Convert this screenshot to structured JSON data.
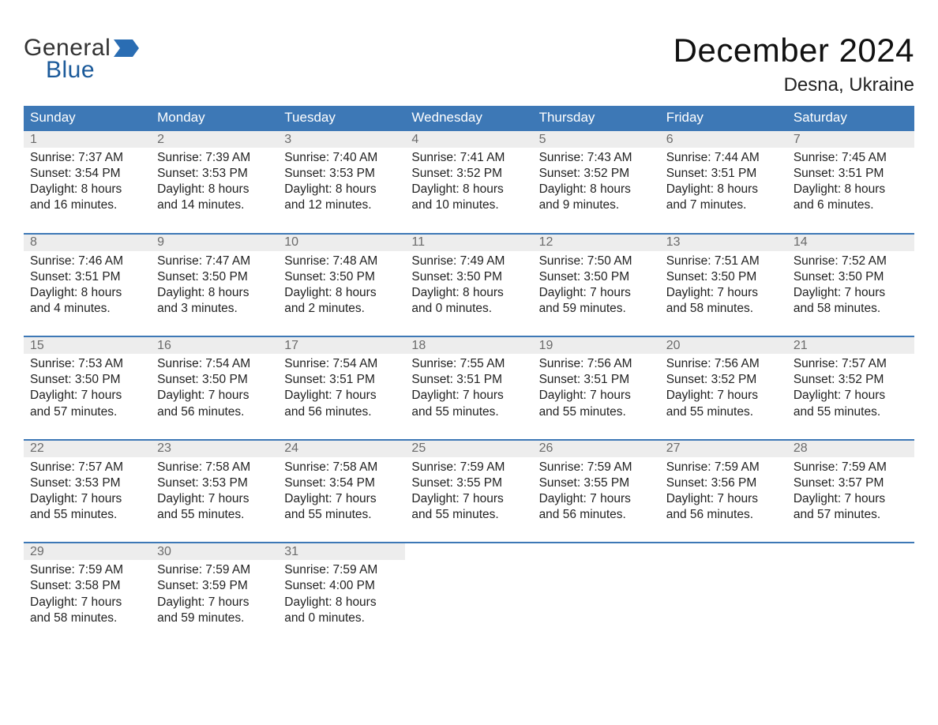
{
  "brand": {
    "wordA": "General",
    "wordB": "Blue",
    "textColorA": "#333333",
    "textColorB": "#1b5a9a",
    "flagColor": "#2a6db3"
  },
  "title": "December 2024",
  "location": "Desna, Ukraine",
  "colors": {
    "headerBg": "#3d78b6",
    "headerText": "#ffffff",
    "weekBorder": "#3d78b6",
    "dayStripBg": "#ededed",
    "dayNumColor": "#6b6b6b",
    "bodyText": "#222222",
    "pageBg": "#ffffff"
  },
  "typography": {
    "titleFontSize": 42,
    "locationFontSize": 24,
    "dayHeaderFontSize": 17,
    "cellFontSize": 15.5
  },
  "dayHeaders": [
    "Sunday",
    "Monday",
    "Tuesday",
    "Wednesday",
    "Thursday",
    "Friday",
    "Saturday"
  ],
  "weeks": [
    [
      {
        "n": "1",
        "sunrise": "Sunrise: 7:37 AM",
        "sunset": "Sunset: 3:54 PM",
        "d1": "Daylight: 8 hours",
        "d2": "and 16 minutes."
      },
      {
        "n": "2",
        "sunrise": "Sunrise: 7:39 AM",
        "sunset": "Sunset: 3:53 PM",
        "d1": "Daylight: 8 hours",
        "d2": "and 14 minutes."
      },
      {
        "n": "3",
        "sunrise": "Sunrise: 7:40 AM",
        "sunset": "Sunset: 3:53 PM",
        "d1": "Daylight: 8 hours",
        "d2": "and 12 minutes."
      },
      {
        "n": "4",
        "sunrise": "Sunrise: 7:41 AM",
        "sunset": "Sunset: 3:52 PM",
        "d1": "Daylight: 8 hours",
        "d2": "and 10 minutes."
      },
      {
        "n": "5",
        "sunrise": "Sunrise: 7:43 AM",
        "sunset": "Sunset: 3:52 PM",
        "d1": "Daylight: 8 hours",
        "d2": "and 9 minutes."
      },
      {
        "n": "6",
        "sunrise": "Sunrise: 7:44 AM",
        "sunset": "Sunset: 3:51 PM",
        "d1": "Daylight: 8 hours",
        "d2": "and 7 minutes."
      },
      {
        "n": "7",
        "sunrise": "Sunrise: 7:45 AM",
        "sunset": "Sunset: 3:51 PM",
        "d1": "Daylight: 8 hours",
        "d2": "and 6 minutes."
      }
    ],
    [
      {
        "n": "8",
        "sunrise": "Sunrise: 7:46 AM",
        "sunset": "Sunset: 3:51 PM",
        "d1": "Daylight: 8 hours",
        "d2": "and 4 minutes."
      },
      {
        "n": "9",
        "sunrise": "Sunrise: 7:47 AM",
        "sunset": "Sunset: 3:50 PM",
        "d1": "Daylight: 8 hours",
        "d2": "and 3 minutes."
      },
      {
        "n": "10",
        "sunrise": "Sunrise: 7:48 AM",
        "sunset": "Sunset: 3:50 PM",
        "d1": "Daylight: 8 hours",
        "d2": "and 2 minutes."
      },
      {
        "n": "11",
        "sunrise": "Sunrise: 7:49 AM",
        "sunset": "Sunset: 3:50 PM",
        "d1": "Daylight: 8 hours",
        "d2": "and 0 minutes."
      },
      {
        "n": "12",
        "sunrise": "Sunrise: 7:50 AM",
        "sunset": "Sunset: 3:50 PM",
        "d1": "Daylight: 7 hours",
        "d2": "and 59 minutes."
      },
      {
        "n": "13",
        "sunrise": "Sunrise: 7:51 AM",
        "sunset": "Sunset: 3:50 PM",
        "d1": "Daylight: 7 hours",
        "d2": "and 58 minutes."
      },
      {
        "n": "14",
        "sunrise": "Sunrise: 7:52 AM",
        "sunset": "Sunset: 3:50 PM",
        "d1": "Daylight: 7 hours",
        "d2": "and 58 minutes."
      }
    ],
    [
      {
        "n": "15",
        "sunrise": "Sunrise: 7:53 AM",
        "sunset": "Sunset: 3:50 PM",
        "d1": "Daylight: 7 hours",
        "d2": "and 57 minutes."
      },
      {
        "n": "16",
        "sunrise": "Sunrise: 7:54 AM",
        "sunset": "Sunset: 3:50 PM",
        "d1": "Daylight: 7 hours",
        "d2": "and 56 minutes."
      },
      {
        "n": "17",
        "sunrise": "Sunrise: 7:54 AM",
        "sunset": "Sunset: 3:51 PM",
        "d1": "Daylight: 7 hours",
        "d2": "and 56 minutes."
      },
      {
        "n": "18",
        "sunrise": "Sunrise: 7:55 AM",
        "sunset": "Sunset: 3:51 PM",
        "d1": "Daylight: 7 hours",
        "d2": "and 55 minutes."
      },
      {
        "n": "19",
        "sunrise": "Sunrise: 7:56 AM",
        "sunset": "Sunset: 3:51 PM",
        "d1": "Daylight: 7 hours",
        "d2": "and 55 minutes."
      },
      {
        "n": "20",
        "sunrise": "Sunrise: 7:56 AM",
        "sunset": "Sunset: 3:52 PM",
        "d1": "Daylight: 7 hours",
        "d2": "and 55 minutes."
      },
      {
        "n": "21",
        "sunrise": "Sunrise: 7:57 AM",
        "sunset": "Sunset: 3:52 PM",
        "d1": "Daylight: 7 hours",
        "d2": "and 55 minutes."
      }
    ],
    [
      {
        "n": "22",
        "sunrise": "Sunrise: 7:57 AM",
        "sunset": "Sunset: 3:53 PM",
        "d1": "Daylight: 7 hours",
        "d2": "and 55 minutes."
      },
      {
        "n": "23",
        "sunrise": "Sunrise: 7:58 AM",
        "sunset": "Sunset: 3:53 PM",
        "d1": "Daylight: 7 hours",
        "d2": "and 55 minutes."
      },
      {
        "n": "24",
        "sunrise": "Sunrise: 7:58 AM",
        "sunset": "Sunset: 3:54 PM",
        "d1": "Daylight: 7 hours",
        "d2": "and 55 minutes."
      },
      {
        "n": "25",
        "sunrise": "Sunrise: 7:59 AM",
        "sunset": "Sunset: 3:55 PM",
        "d1": "Daylight: 7 hours",
        "d2": "and 55 minutes."
      },
      {
        "n": "26",
        "sunrise": "Sunrise: 7:59 AM",
        "sunset": "Sunset: 3:55 PM",
        "d1": "Daylight: 7 hours",
        "d2": "and 56 minutes."
      },
      {
        "n": "27",
        "sunrise": "Sunrise: 7:59 AM",
        "sunset": "Sunset: 3:56 PM",
        "d1": "Daylight: 7 hours",
        "d2": "and 56 minutes."
      },
      {
        "n": "28",
        "sunrise": "Sunrise: 7:59 AM",
        "sunset": "Sunset: 3:57 PM",
        "d1": "Daylight: 7 hours",
        "d2": "and 57 minutes."
      }
    ],
    [
      {
        "n": "29",
        "sunrise": "Sunrise: 7:59 AM",
        "sunset": "Sunset: 3:58 PM",
        "d1": "Daylight: 7 hours",
        "d2": "and 58 minutes."
      },
      {
        "n": "30",
        "sunrise": "Sunrise: 7:59 AM",
        "sunset": "Sunset: 3:59 PM",
        "d1": "Daylight: 7 hours",
        "d2": "and 59 minutes."
      },
      {
        "n": "31",
        "sunrise": "Sunrise: 7:59 AM",
        "sunset": "Sunset: 4:00 PM",
        "d1": "Daylight: 8 hours",
        "d2": "and 0 minutes."
      },
      null,
      null,
      null,
      null
    ]
  ]
}
